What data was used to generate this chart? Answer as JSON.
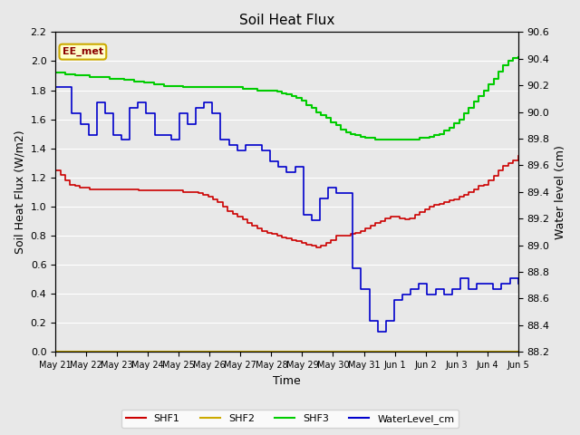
{
  "title": "Soil Heat Flux",
  "ylabel_left": "Soil Heat Flux (W/m2)",
  "ylabel_right": "Water level (cm)",
  "xlabel": "Time",
  "annotation_text": "EE_met",
  "annotation_bg": "#FFFFCC",
  "annotation_border": "#CCAA00",
  "bg_color": "#E8E8E8",
  "ylim_left": [
    0.0,
    2.2
  ],
  "ylim_right": [
    88.2,
    90.6
  ],
  "yticks_left": [
    0.0,
    0.2,
    0.4,
    0.6,
    0.8,
    1.0,
    1.2,
    1.4,
    1.6,
    1.8,
    2.0,
    2.2
  ],
  "yticks_right": [
    88.2,
    88.4,
    88.6,
    88.8,
    89.0,
    89.2,
    89.4,
    89.6,
    89.8,
    90.0,
    90.2,
    90.4,
    90.6
  ],
  "xtick_labels": [
    "May 21",
    "May 22",
    "May 23",
    "May 24",
    "May 25",
    "May 26",
    "May 27",
    "May 28",
    "May 29",
    "May 30",
    "May 31",
    "Jun 1",
    "Jun 2",
    "Jun 3",
    "Jun 4",
    "Jun 5"
  ],
  "shf1_color": "#CC0000",
  "shf2_color": "#CCAA00",
  "shf3_color": "#00CC00",
  "wl_color": "#0000CC",
  "legend_labels": [
    "SHF1",
    "SHF2",
    "SHF3",
    "WaterLevel_cm"
  ],
  "shf1": [
    1.25,
    1.22,
    1.18,
    1.15,
    1.14,
    1.13,
    1.13,
    1.12,
    1.12,
    1.12,
    1.12,
    1.12,
    1.12,
    1.12,
    1.12,
    1.12,
    1.12,
    1.11,
    1.11,
    1.11,
    1.11,
    1.11,
    1.11,
    1.11,
    1.11,
    1.11,
    1.1,
    1.1,
    1.1,
    1.09,
    1.08,
    1.07,
    1.05,
    1.03,
    1.0,
    0.97,
    0.95,
    0.93,
    0.91,
    0.89,
    0.87,
    0.85,
    0.83,
    0.82,
    0.81,
    0.8,
    0.79,
    0.78,
    0.77,
    0.76,
    0.75,
    0.74,
    0.73,
    0.72,
    0.73,
    0.75,
    0.77,
    0.8,
    0.8,
    0.8,
    0.81,
    0.82,
    0.83,
    0.85,
    0.87,
    0.89,
    0.9,
    0.92,
    0.93,
    0.93,
    0.92,
    0.91,
    0.92,
    0.94,
    0.96,
    0.98,
    1.0,
    1.01,
    1.02,
    1.03,
    1.04,
    1.05,
    1.07,
    1.08,
    1.1,
    1.12,
    1.14,
    1.15,
    1.18,
    1.21,
    1.25,
    1.28,
    1.3,
    1.32,
    1.35
  ],
  "shf2": [
    0.0,
    0.0,
    0.0,
    0.0,
    0.0,
    0.0,
    0.0,
    0.0,
    0.0,
    0.0,
    0.0,
    0.0,
    0.0,
    0.0,
    0.0,
    0.0,
    0.0,
    0.0,
    0.0,
    0.0,
    0.0,
    0.0,
    0.0,
    0.0,
    0.0,
    0.0,
    0.0,
    0.0,
    0.0,
    0.0,
    0.0,
    0.0,
    0.0,
    0.0,
    0.0,
    0.0,
    0.0,
    0.0,
    0.0,
    0.0,
    0.0,
    0.0,
    0.0,
    0.0,
    0.0,
    0.0,
    0.0,
    0.0,
    0.0,
    0.0,
    0.0,
    0.0,
    0.0,
    0.0,
    0.0,
    0.0,
    0.0,
    0.0,
    0.0,
    0.0,
    0.0,
    0.0,
    0.0,
    0.0,
    0.0,
    0.0,
    0.0,
    0.0,
    0.0,
    0.0,
    0.0,
    0.0,
    0.0,
    0.0,
    0.0,
    0.0,
    0.0,
    0.0,
    0.0,
    0.0,
    0.0,
    0.0,
    0.0,
    0.0,
    0.0,
    0.0,
    0.0,
    0.0,
    0.0,
    0.0,
    0.0,
    0.0,
    0.0,
    0.0,
    0.0
  ],
  "shf3": [
    1.92,
    1.92,
    1.91,
    1.91,
    1.9,
    1.9,
    1.9,
    1.89,
    1.89,
    1.89,
    1.89,
    1.88,
    1.88,
    1.88,
    1.87,
    1.87,
    1.86,
    1.86,
    1.85,
    1.85,
    1.84,
    1.84,
    1.83,
    1.83,
    1.83,
    1.83,
    1.82,
    1.82,
    1.82,
    1.82,
    1.82,
    1.82,
    1.82,
    1.82,
    1.82,
    1.82,
    1.82,
    1.82,
    1.81,
    1.81,
    1.81,
    1.8,
    1.8,
    1.8,
    1.8,
    1.79,
    1.78,
    1.77,
    1.76,
    1.75,
    1.73,
    1.7,
    1.68,
    1.65,
    1.63,
    1.61,
    1.58,
    1.56,
    1.53,
    1.51,
    1.5,
    1.49,
    1.48,
    1.47,
    1.47,
    1.46,
    1.46,
    1.46,
    1.46,
    1.46,
    1.46,
    1.46,
    1.46,
    1.46,
    1.47,
    1.47,
    1.48,
    1.49,
    1.5,
    1.52,
    1.54,
    1.57,
    1.6,
    1.64,
    1.68,
    1.72,
    1.76,
    1.8,
    1.84,
    1.88,
    1.93,
    1.97,
    2.0,
    2.02,
    2.03
  ],
  "wl_cm": [
    90.19,
    90.19,
    89.99,
    89.91,
    89.83,
    90.07,
    89.99,
    89.83,
    89.79,
    90.03,
    90.07,
    89.99,
    89.83,
    89.83,
    89.79,
    89.99,
    89.91,
    90.03,
    90.07,
    89.99,
    89.79,
    89.75,
    89.71,
    89.75,
    89.75,
    89.71,
    89.63,
    89.59,
    89.55,
    89.59,
    89.23,
    89.19,
    89.35,
    89.43,
    89.39,
    89.39,
    88.83,
    88.67,
    88.43,
    88.35,
    88.43,
    88.59,
    88.63,
    88.67,
    88.71,
    88.63,
    88.67,
    88.63,
    88.67,
    88.75,
    88.67,
    88.71,
    88.71,
    88.67,
    88.71,
    88.75,
    88.71
  ],
  "n_main": 95,
  "n_wl": 57,
  "total_days": 15.0
}
